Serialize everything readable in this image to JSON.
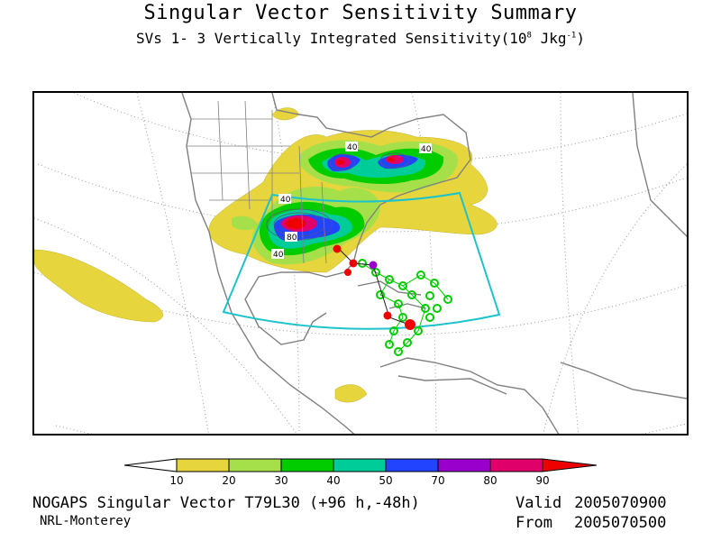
{
  "header": {
    "title": "Singular Vector Sensitivity Summary",
    "subtitle_prefix": "SVs 1- 3  Vertically Integrated Sensitivity(10",
    "subtitle_exp": "8",
    "subtitle_unit": " Jkg",
    "subtitle_unit_exp": "-1",
    "subtitle_suffix": ")"
  },
  "map": {
    "contour_labels": [
      "40",
      "40",
      "40",
      "80",
      "40"
    ],
    "colors": {
      "land_outline": "#808080",
      "graticule": "#9a9a9a",
      "verification_box": "#1cc3cc",
      "track_green": "#00cc00",
      "track_red": "#ee0000",
      "track_purple": "#9900cc"
    }
  },
  "colorbar": {
    "labels": [
      "10",
      "20",
      "30",
      "40",
      "50",
      "70",
      "80",
      "90"
    ],
    "colors": [
      "#ffffff",
      "#e6d53c",
      "#a5e04a",
      "#00cc00",
      "#00cc99",
      "#2244ff",
      "#9900cc",
      "#e0006a",
      "#ee0000"
    ]
  },
  "footer": {
    "model": "NOGAPS Singular Vector T79L30 (+96 h,-48h)",
    "institution": "NRL-Monterey",
    "valid_label": "Valid",
    "valid_value": "2005070900",
    "from_label": "From",
    "from_value": "2005070500"
  }
}
